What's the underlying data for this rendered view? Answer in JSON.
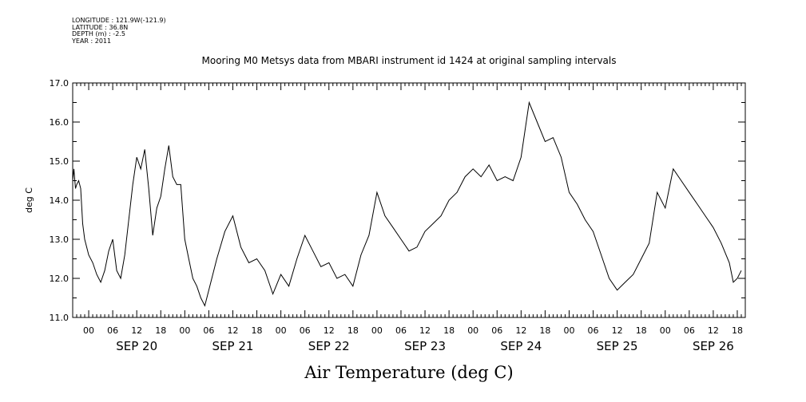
{
  "meta": {
    "longitude": "LONGITUDE : 121.9W(-121.9)",
    "latitude": "LATITUDE : 36.8N",
    "depth": "DEPTH (m) : -2.5",
    "year": "YEAR : 2011"
  },
  "chart_data": {
    "type": "line",
    "title": "Mooring M0 Metsys data from MBARI instrument id 1424 at original sampling intervals",
    "xlabel": "Air Temperature (deg C)",
    "ylabel": "deg C",
    "ylim": [
      11.0,
      17.0
    ],
    "yticks": [
      "11.0",
      "12.0",
      "13.0",
      "14.0",
      "15.0",
      "16.0",
      "17.0"
    ],
    "xlim_hours": [
      -4,
      164
    ],
    "hour_tick_labels": [
      "00",
      "06",
      "12",
      "18"
    ],
    "day_labels": [
      "SEP 20",
      "SEP 21",
      "SEP 22",
      "SEP 23",
      "SEP 24",
      "SEP 25",
      "SEP 26"
    ],
    "grid": false,
    "line_color": "#000000",
    "series": [
      {
        "x_hours": [
          -4,
          -3.7,
          -3.3,
          -3,
          -2.5,
          -2,
          -1.5,
          -1,
          -0.5,
          0,
          1,
          2,
          3,
          4,
          5,
          6,
          7,
          8,
          9,
          10,
          11,
          12,
          13,
          14,
          15,
          16,
          17,
          18,
          19,
          20,
          21,
          22,
          23,
          24,
          25,
          26,
          27,
          28,
          29,
          30,
          32,
          34,
          36,
          38,
          40,
          42,
          44,
          46,
          48,
          50,
          52,
          54,
          56,
          58,
          60,
          62,
          64,
          66,
          68,
          70,
          72,
          74,
          76,
          78,
          80,
          82,
          84,
          86,
          88,
          90,
          92,
          94,
          96,
          98,
          100,
          102,
          104,
          106,
          108,
          110,
          112,
          114,
          116,
          118,
          120,
          122,
          124,
          126,
          128,
          130,
          132,
          134,
          136,
          138,
          140,
          142,
          144,
          146,
          148,
          150,
          152,
          154,
          156,
          158,
          160,
          161,
          162,
          163
        ],
        "y": [
          14.5,
          14.8,
          14.3,
          14.4,
          14.5,
          14.3,
          13.4,
          13.0,
          12.8,
          12.6,
          12.4,
          12.1,
          11.9,
          12.2,
          12.7,
          13.0,
          12.2,
          12.0,
          12.6,
          13.5,
          14.4,
          15.1,
          14.8,
          15.3,
          14.3,
          13.1,
          13.8,
          14.1,
          14.8,
          15.4,
          14.6,
          14.4,
          14.4,
          13.0,
          12.5,
          12.0,
          11.8,
          11.5,
          11.3,
          11.7,
          12.5,
          13.2,
          13.6,
          12.8,
          12.4,
          12.5,
          12.2,
          11.6,
          12.1,
          11.8,
          12.5,
          13.1,
          12.7,
          12.3,
          12.4,
          12.0,
          12.1,
          11.8,
          12.6,
          13.1,
          14.2,
          13.6,
          13.3,
          13.0,
          12.7,
          12.8,
          13.2,
          13.4,
          13.6,
          14.0,
          14.2,
          14.6,
          14.8,
          14.6,
          14.9,
          14.5,
          14.6,
          14.5,
          15.1,
          16.5,
          16.0,
          15.5,
          15.6,
          15.1,
          14.2,
          13.9,
          13.5,
          13.2,
          12.6,
          12.0,
          11.7,
          11.9,
          12.1,
          12.5,
          12.9,
          14.2,
          13.8,
          14.8,
          14.5,
          14.2,
          13.9,
          13.6,
          13.3,
          12.9,
          12.4,
          11.9,
          12.0,
          12.2
        ]
      }
    ]
  }
}
